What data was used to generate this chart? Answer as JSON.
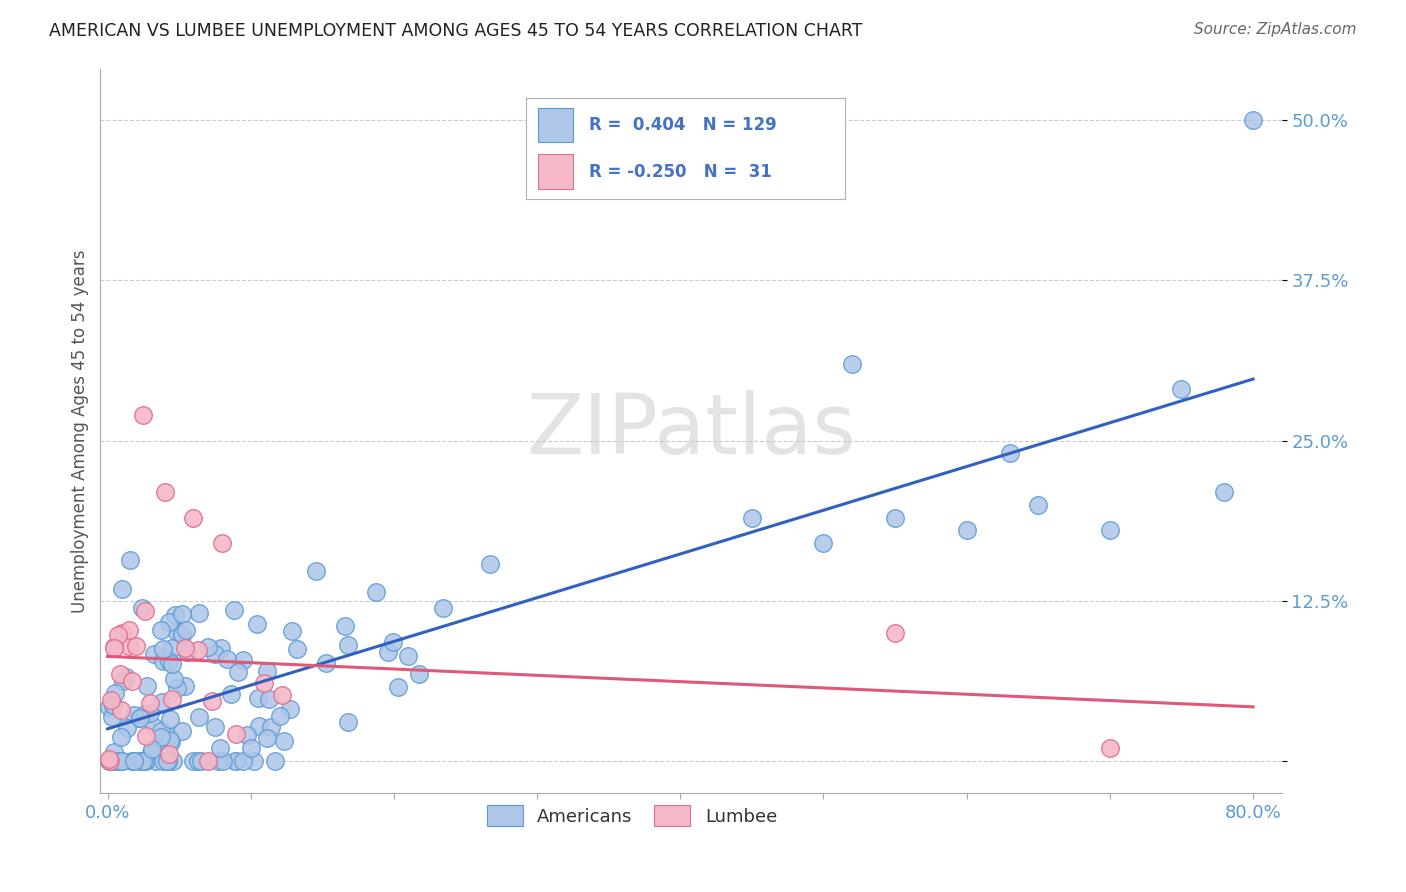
{
  "title": "AMERICAN VS LUMBEE UNEMPLOYMENT AMONG AGES 45 TO 54 YEARS CORRELATION CHART",
  "source": "Source: ZipAtlas.com",
  "ylabel": "Unemployment Among Ages 45 to 54 years",
  "americans_R": 0.404,
  "americans_N": 129,
  "lumbee_R": -0.25,
  "lumbee_N": 31,
  "americans_color": "#aec6e8",
  "americans_edge_color": "#5b9bd5",
  "lumbee_color": "#f4b8c8",
  "lumbee_edge_color": "#e07090",
  "trend_american_color": "#3060c0",
  "trend_lumbee_color": "#e05878",
  "background_color": "#ffffff",
  "watermark": "ZIPatlas",
  "legend_R_color": "#4472c4",
  "legend_N_color": "#333333"
}
